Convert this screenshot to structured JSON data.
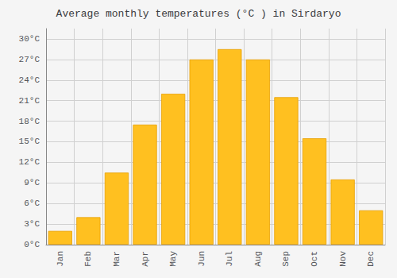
{
  "chart_data": {
    "type": "bar",
    "title": "Average monthly temperatures (°C ) in Sirdaryo",
    "categories": [
      "Jan",
      "Feb",
      "Mar",
      "Apr",
      "May",
      "Jun",
      "Jul",
      "Aug",
      "Sep",
      "Oct",
      "Nov",
      "Dec"
    ],
    "values": [
      2,
      4,
      10.5,
      17.5,
      22,
      27,
      28.5,
      27,
      21.5,
      15.5,
      9.5,
      5
    ],
    "color": "#FFC020",
    "ylim": [
      0,
      31.5
    ],
    "yticks": [
      {
        "value": 0,
        "label": "0°C"
      },
      {
        "value": 3,
        "label": "3°C"
      },
      {
        "value": 6,
        "label": "6°C"
      },
      {
        "value": 9,
        "label": "9°C"
      },
      {
        "value": 12,
        "label": "12°C"
      },
      {
        "value": 15,
        "label": "15°C"
      },
      {
        "value": 18,
        "label": "18°C"
      },
      {
        "value": 21,
        "label": "21°C"
      },
      {
        "value": 24,
        "label": "24°C"
      },
      {
        "value": 27,
        "label": "27°C"
      },
      {
        "value": 30,
        "label": "30°C"
      }
    ],
    "grid": true
  }
}
